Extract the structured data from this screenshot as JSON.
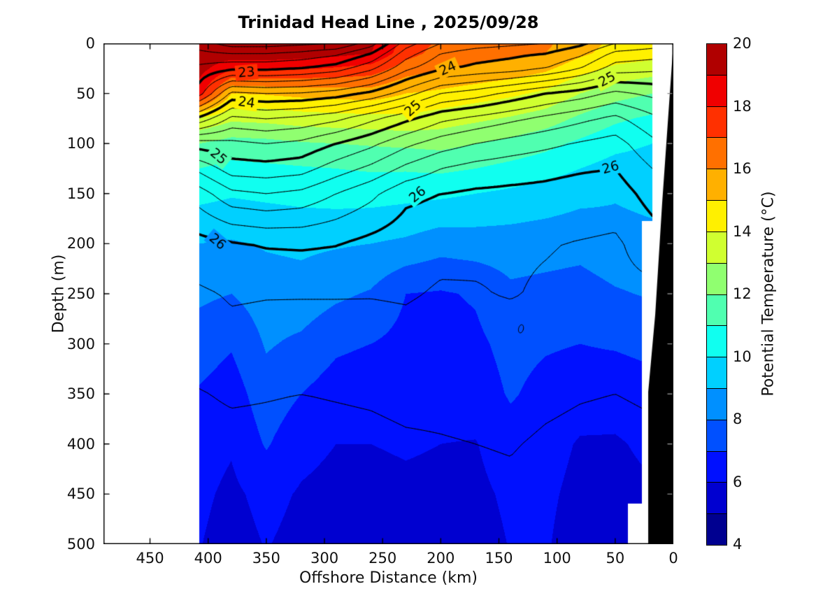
{
  "figure": {
    "title": "Trinidad Head Line , 2025/09/28",
    "background": "#ffffff"
  },
  "axes": {
    "xlabel": "Offshore Distance (km)",
    "ylabel": "Depth (m)",
    "x_ticks": [
      450,
      400,
      350,
      300,
      250,
      200,
      150,
      100,
      50,
      0
    ],
    "y_ticks": [
      0,
      50,
      100,
      150,
      200,
      250,
      300,
      350,
      400,
      450,
      500
    ],
    "x_range": [
      490,
      0
    ],
    "y_range": [
      0,
      500
    ],
    "x_reversed": true,
    "ticks_direction": "in",
    "box": true
  },
  "colorbar": {
    "label": "Potential Temperature (°C)",
    "ticks": [
      4,
      6,
      8,
      10,
      12,
      14,
      16,
      18,
      20
    ],
    "min": 4,
    "max": 20,
    "band_step": 1,
    "colors_low_to_high": [
      "#000090",
      "#0000d0",
      "#0010ff",
      "#0050ff",
      "#0090ff",
      "#00d0ff",
      "#10fff0",
      "#50ffb0",
      "#90ff70",
      "#d0ff30",
      "#fff000",
      "#ffb000",
      "#ff7000",
      "#ff3000",
      "#f00000",
      "#b00000"
    ]
  },
  "chart_data": {
    "type": "filled-contour-section",
    "title": "Trinidad Head Line , 2025/09/28",
    "fill_variable": "Potential Temperature (°C)",
    "line_variable": "sigma-theta isopycnals",
    "temperature_contour_interval_c": 1,
    "sigma_contour_interval": 0.2,
    "sigma_major_interval": 1,
    "station_distances_km": [
      408,
      380,
      350,
      320,
      290,
      260,
      230,
      200,
      170,
      140,
      110,
      80,
      50,
      18
    ],
    "depths_m": [
      0,
      10,
      25,
      50,
      75,
      100,
      125,
      150,
      200,
      250,
      300,
      350,
      400,
      450,
      500
    ],
    "temperature_c": [
      [
        19.6,
        19.6,
        19.4,
        18.5,
        13.9,
        12.0,
        11.0,
        10.3,
        9.0,
        8.2,
        7.5,
        6.9,
        6.4,
        6.2,
        6.05
      ],
      [
        19.7,
        19.6,
        18.2,
        15.0,
        13.2,
        11.6,
        10.7,
        10.1,
        8.9,
        8.0,
        7.1,
        6.5,
        6.1,
        5.8,
        5.6
      ],
      [
        19.7,
        19.6,
        18.3,
        15.1,
        13.3,
        11.7,
        10.8,
        10.2,
        9.1,
        8.5,
        8.1,
        7.6,
        7.1,
        6.3,
        6.05
      ],
      [
        19.6,
        19.5,
        18.1,
        15.3,
        13.5,
        11.9,
        10.9,
        10.3,
        9.2,
        8.6,
        7.8,
        7.0,
        6.3,
        5.9,
        5.7
      ],
      [
        19.4,
        19.3,
        17.9,
        15.4,
        13.6,
        12.0,
        11.0,
        10.4,
        9.1,
        8.2,
        7.2,
        6.5,
        6.0,
        5.7,
        5.5
      ],
      [
        19.2,
        19.0,
        17.6,
        15.5,
        13.7,
        12.1,
        11.1,
        10.4,
        9.0,
        7.9,
        7.0,
        6.3,
        6.0,
        5.7,
        5.5
      ],
      [
        17.6,
        17.4,
        16.5,
        15.0,
        13.8,
        12.2,
        11.1,
        10.3,
        8.8,
        7.0,
        6.7,
        6.4,
        6.1,
        5.8,
        5.6
      ],
      [
        16.8,
        16.6,
        16.0,
        14.8,
        13.5,
        12.3,
        11.2,
        10.2,
        8.4,
        6.9,
        6.6,
        6.4,
        6.0,
        5.75,
        5.55
      ],
      [
        16.6,
        16.4,
        15.8,
        14.5,
        13.2,
        12.0,
        11.0,
        10.0,
        8.5,
        7.1,
        6.8,
        6.5,
        5.95,
        5.75,
        5.55
      ],
      [
        16.4,
        16.2,
        15.6,
        14.2,
        12.9,
        11.7,
        10.7,
        9.8,
        8.5,
        7.8,
        7.3,
        7.1,
        6.6,
        6.2,
        6.05
      ],
      [
        16.2,
        16.0,
        15.2,
        13.8,
        12.5,
        11.3,
        10.4,
        9.6,
        8.4,
        7.7,
        7.1,
        6.7,
        6.4,
        6.2,
        6.1
      ],
      [
        15.4,
        15.2,
        14.4,
        13.0,
        11.8,
        10.8,
        10.0,
        9.3,
        8.3,
        7.6,
        7.0,
        6.5,
        5.9,
        5.7,
        5.5
      ],
      [
        14.8,
        14.6,
        13.8,
        12.4,
        11.2,
        10.3,
        9.6,
        9.1,
        8.6,
        7.9,
        7.1,
        6.4,
        5.9,
        5.7,
        5.5
      ],
      [
        14.6,
        14.4,
        13.5,
        12.0,
        10.8,
        10.0,
        9.5,
        9.3,
        8.7,
        8.1,
        7.3,
        6.6,
        6.2,
        5.9,
        5.7
      ]
    ],
    "sigma_theta": [
      [
        22.5,
        22.65,
        22.85,
        23.1,
        24.05,
        24.9,
        25.35,
        25.7,
        26.07,
        26.23,
        26.32,
        26.41,
        26.46,
        26.5,
        26.53
      ],
      [
        22.3,
        22.6,
        22.95,
        23.85,
        24.45,
        24.85,
        25.1,
        25.45,
        26.02,
        26.18,
        26.26,
        26.38,
        26.45,
        26.49,
        26.52
      ],
      [
        22.3,
        22.6,
        22.95,
        23.8,
        24.4,
        24.8,
        25.08,
        25.4,
        25.98,
        26.19,
        26.27,
        26.39,
        26.45,
        26.49,
        26.52
      ],
      [
        22.35,
        22.65,
        23.0,
        23.82,
        24.45,
        24.85,
        25.12,
        25.45,
        25.97,
        26.19,
        26.28,
        26.4,
        26.46,
        26.5,
        26.53
      ],
      [
        22.4,
        22.75,
        23.1,
        23.9,
        24.55,
        25.0,
        25.3,
        25.6,
        25.99,
        26.19,
        26.28,
        26.39,
        26.45,
        26.49,
        26.52
      ],
      [
        22.7,
        23.0,
        23.35,
        24.05,
        24.75,
        25.15,
        25.45,
        25.75,
        26.06,
        26.19,
        26.29,
        26.38,
        26.44,
        26.48,
        26.51
      ],
      [
        23.3,
        23.5,
        23.75,
        24.3,
        24.95,
        25.35,
        25.65,
        25.95,
        26.12,
        26.18,
        26.27,
        26.36,
        26.42,
        26.46,
        26.5
      ],
      [
        23.6,
        23.8,
        23.97,
        24.6,
        25.15,
        25.5,
        25.8,
        26.0,
        26.15,
        26.22,
        26.3,
        26.36,
        26.41,
        26.45,
        26.49
      ],
      [
        23.7,
        23.9,
        24.05,
        24.7,
        25.25,
        25.6,
        25.88,
        26.03,
        26.17,
        26.21,
        26.29,
        26.35,
        26.4,
        26.44,
        26.48
      ],
      [
        23.75,
        23.95,
        24.1,
        24.85,
        25.35,
        25.68,
        25.92,
        26.04,
        26.18,
        26.19,
        26.28,
        26.34,
        26.39,
        26.43,
        26.47
      ],
      [
        23.8,
        24.0,
        24.2,
        25.0,
        25.45,
        25.75,
        25.95,
        26.05,
        26.19,
        26.22,
        26.31,
        26.37,
        26.42,
        26.46,
        26.49
      ],
      [
        23.95,
        24.15,
        24.4,
        25.1,
        25.55,
        25.82,
        25.98,
        26.08,
        26.21,
        26.24,
        26.33,
        26.39,
        26.44,
        26.48,
        26.51
      ],
      [
        24.2,
        24.45,
        24.7,
        25.25,
        25.65,
        25.88,
        26.0,
        26.1,
        26.23,
        26.25,
        26.34,
        26.4,
        26.45,
        26.49,
        26.52
      ],
      [
        24.3,
        24.5,
        24.75,
        25.15,
        25.45,
        25.65,
        25.8,
        25.92,
        26.1,
        26.25,
        26.33,
        26.38,
        26.43,
        26.47,
        26.5
      ]
    ],
    "isopycnal_labels": [
      {
        "text": "23",
        "km": 367,
        "depth_m": 29,
        "rot_deg": -5
      },
      {
        "text": "24",
        "km": 367,
        "depth_m": 59,
        "rot_deg": 8
      },
      {
        "text": "24",
        "km": 194,
        "depth_m": 25,
        "rot_deg": -24
      },
      {
        "text": "25",
        "km": 391,
        "depth_m": 113,
        "rot_deg": 40
      },
      {
        "text": "25",
        "km": 224,
        "depth_m": 65,
        "rot_deg": -42
      },
      {
        "text": "25",
        "km": 57,
        "depth_m": 36,
        "rot_deg": -28
      },
      {
        "text": "26",
        "km": 392,
        "depth_m": 198,
        "rot_deg": 40
      },
      {
        "text": "26",
        "km": 220,
        "depth_m": 151,
        "rot_deg": -40
      },
      {
        "text": "26",
        "km": 54,
        "depth_m": 124,
        "rot_deg": -15
      }
    ],
    "no_data_left_km": [
      490,
      408
    ],
    "coastal_data_edge": [
      {
        "from_depth_m": 0,
        "km": 18
      },
      {
        "from_depth_m": 178,
        "km": 27
      },
      {
        "from_depth_m": 460,
        "km": 39
      }
    ],
    "bathymetry_polygon_km_m": [
      [
        0,
        0
      ],
      [
        9.6,
        159
      ],
      [
        15.6,
        271
      ],
      [
        21.6,
        348
      ],
      [
        21.6,
        500
      ],
      [
        0,
        500
      ]
    ],
    "minor_closed_contour": {
      "km": 131,
      "depth_m": 285
    }
  }
}
